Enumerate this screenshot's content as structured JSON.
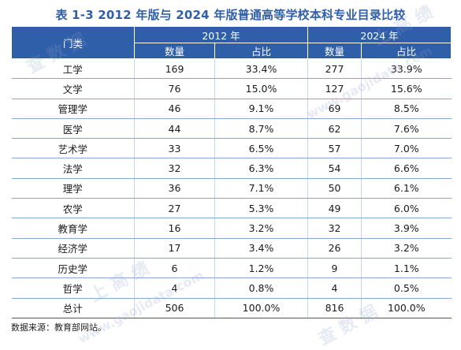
{
  "title": "表 1-3 2012 年版与 2024 年版普通高等学校本科专业目录比较",
  "header": {
    "category": "门类",
    "year_a": "2012 年",
    "year_b": "2024 年",
    "count": "数量",
    "share": "占比"
  },
  "rows": [
    {
      "name": "工学",
      "c2012": "169",
      "p2012": "33.4%",
      "c2024": "277",
      "p2024": "33.9%"
    },
    {
      "name": "文学",
      "c2012": "76",
      "p2012": "15.0%",
      "c2024": "127",
      "p2024": "15.6%"
    },
    {
      "name": "管理学",
      "c2012": "46",
      "p2012": "9.1%",
      "c2024": "69",
      "p2024": "8.5%"
    },
    {
      "name": "医学",
      "c2012": "44",
      "p2012": "8.7%",
      "c2024": "62",
      "p2024": "7.6%"
    },
    {
      "name": "艺术学",
      "c2012": "33",
      "p2012": "6.5%",
      "c2024": "57",
      "p2024": "7.0%"
    },
    {
      "name": "法学",
      "c2012": "32",
      "p2012": "6.3%",
      "c2024": "54",
      "p2024": "6.6%"
    },
    {
      "name": "理学",
      "c2012": "36",
      "p2012": "7.1%",
      "c2024": "50",
      "p2024": "6.1%"
    },
    {
      "name": "农学",
      "c2012": "27",
      "p2012": "5.3%",
      "c2024": "49",
      "p2024": "6.0%"
    },
    {
      "name": "教育学",
      "c2012": "16",
      "p2012": "3.2%",
      "c2024": "32",
      "p2024": "3.9%"
    },
    {
      "name": "经济学",
      "c2012": "17",
      "p2012": "3.4%",
      "c2024": "26",
      "p2024": "3.2%"
    },
    {
      "name": "历史学",
      "c2012": "6",
      "p2012": "1.2%",
      "c2024": "9",
      "p2024": "1.1%"
    },
    {
      "name": "哲学",
      "c2012": "4",
      "p2012": "0.8%",
      "c2024": "4",
      "p2024": "0.5%"
    },
    {
      "name": "总计",
      "c2012": "506",
      "p2012": "100.0%",
      "c2024": "816",
      "p2024": "100.0%"
    }
  ],
  "source": "数据来源：教育部网站。",
  "watermark": {
    "text_a": "上 高 绩",
    "text_b": "查 数 据",
    "text_c": "www.gaojidata.com"
  },
  "colors": {
    "accent": "#2f5fa8",
    "text": "#1a1a1a"
  }
}
